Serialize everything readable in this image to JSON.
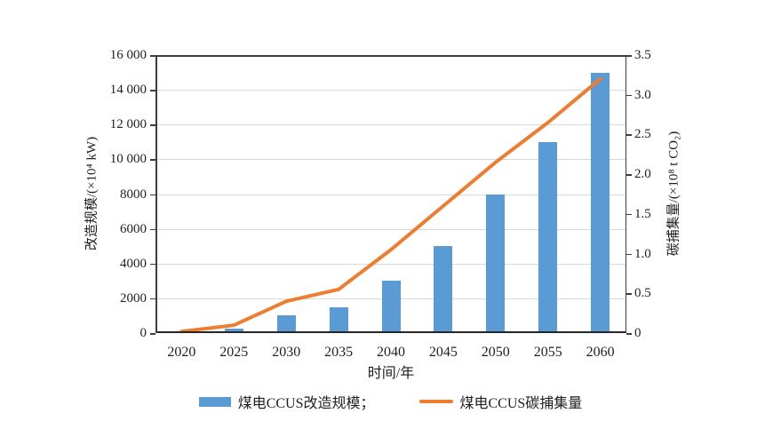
{
  "chart_data": {
    "type": "bar",
    "subtype": "combo-bar-line-dual-axis",
    "categories": [
      "2020",
      "2025",
      "2030",
      "2035",
      "2040",
      "2045",
      "2050",
      "2055",
      "2060"
    ],
    "series": [
      {
        "name": "煤电CCUS改造规模",
        "type": "bar",
        "axis": "left",
        "color": "#5B9BD5",
        "values": [
          0,
          250,
          1000,
          1500,
          3000,
          5000,
          8000,
          11000,
          15000
        ]
      },
      {
        "name": "煤电CCUS碳捕集量",
        "type": "line",
        "axis": "right",
        "color": "#ED7D31",
        "values": [
          0.02,
          0.1,
          0.4,
          0.55,
          1.05,
          1.6,
          2.15,
          2.65,
          3.2
        ]
      }
    ],
    "left_axis": {
      "label": "改造规模/(×10⁴ kW)",
      "min": 0,
      "max": 16000,
      "ticks": [
        {
          "v": 16000,
          "label": "16 000"
        },
        {
          "v": 14000,
          "label": "14 000"
        },
        {
          "v": 12000,
          "label": "12 000"
        },
        {
          "v": 10000,
          "label": "10 000"
        },
        {
          "v": 8000,
          "label": "8000"
        },
        {
          "v": 6000,
          "label": "6000"
        },
        {
          "v": 4000,
          "label": "4000"
        },
        {
          "v": 2000,
          "label": "2000"
        },
        {
          "v": 0,
          "label": "0"
        }
      ]
    },
    "right_axis": {
      "label": "碳捕集量/(×10⁸ t CO₂)",
      "min": 0,
      "max": 3.5,
      "ticks": [
        {
          "v": 3.5,
          "label": "3.5"
        },
        {
          "v": 3.0,
          "label": "3.0"
        },
        {
          "v": 2.5,
          "label": "2.5"
        },
        {
          "v": 2.0,
          "label": "2.0"
        },
        {
          "v": 1.5,
          "label": "1.5"
        },
        {
          "v": 1.0,
          "label": "1.0"
        },
        {
          "v": 0.5,
          "label": "0.5"
        },
        {
          "v": 0,
          "label": "0"
        }
      ]
    },
    "x_axis": {
      "label": "时间/年"
    },
    "legend": {
      "position": "bottom-center",
      "items": [
        {
          "label": "煤电CCUS改造规模；",
          "swatch": "bar",
          "color": "#5B9BD5"
        },
        {
          "label": "煤电CCUS碳捕集量",
          "swatch": "line",
          "color": "#ED7D31"
        }
      ]
    },
    "grid": "horizontal",
    "gridline_color": "#d9d9d9"
  }
}
